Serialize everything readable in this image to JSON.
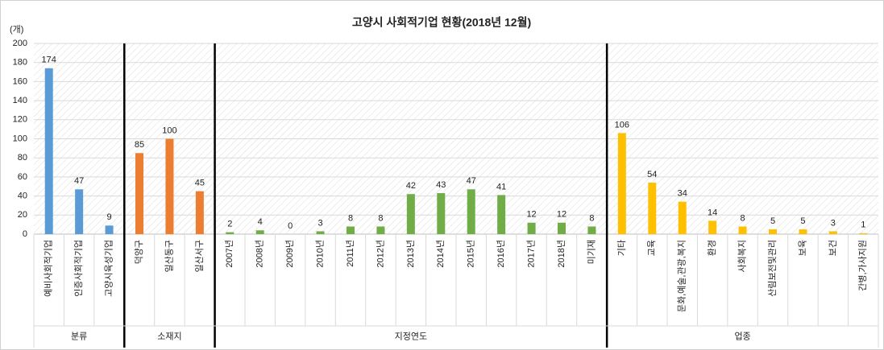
{
  "chart_data": {
    "type": "bar",
    "title": "고양시 사회적기업 현황(2018년 12월)",
    "y_unit": "(개)",
    "ylim": [
      0,
      200
    ],
    "yticks": [
      0,
      20,
      40,
      60,
      80,
      100,
      120,
      140,
      160,
      180,
      200
    ],
    "grid": true,
    "groups": [
      {
        "name": "분류",
        "color": "#5b9bd5",
        "categories": [
          "예비사회적기업",
          "인증사회적기업",
          "고양시육성기업"
        ],
        "values": [
          174,
          47,
          9
        ]
      },
      {
        "name": "소재지",
        "color": "#ed7d31",
        "categories": [
          "덕양구",
          "일산동구",
          "일산서구"
        ],
        "values": [
          85,
          100,
          45
        ]
      },
      {
        "name": "지정연도",
        "color": "#70ad47",
        "categories": [
          "2007년",
          "2008년",
          "2009년",
          "2010년",
          "2011년",
          "2012년",
          "2013년",
          "2014년",
          "2015년",
          "2016년",
          "2017년",
          "2018년",
          "미기재"
        ],
        "values": [
          2,
          4,
          0,
          3,
          8,
          8,
          42,
          43,
          47,
          41,
          12,
          12,
          8
        ]
      },
      {
        "name": "업종",
        "color": "#ffc000",
        "categories": [
          "기타",
          "교육",
          "문화,예술,관광,복지",
          "환경",
          "사회복지",
          "산림보전및관리",
          "보육",
          "보건",
          "간병,가사지원"
        ],
        "values": [
          106,
          54,
          34,
          14,
          8,
          5,
          5,
          3,
          1
        ]
      }
    ]
  }
}
